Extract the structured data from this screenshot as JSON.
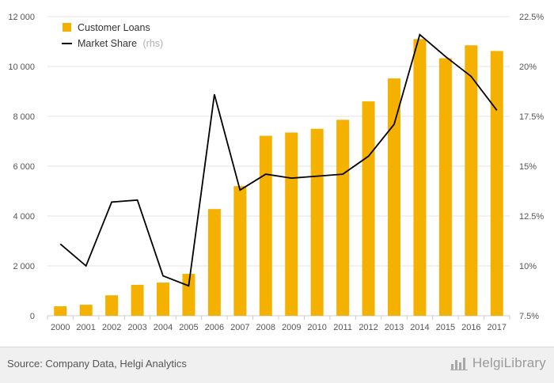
{
  "chart_data": {
    "type": "bar+line",
    "title": "",
    "x": [
      "2000",
      "2001",
      "2002",
      "2003",
      "2004",
      "2005",
      "2006",
      "2007",
      "2008",
      "2009",
      "2010",
      "2011",
      "2012",
      "2013",
      "2014",
      "2015",
      "2016",
      "2017"
    ],
    "series": [
      {
        "name": "Customer Loans",
        "type": "bar",
        "axis": "left",
        "color": "#f5b100",
        "values": [
          380,
          440,
          820,
          1240,
          1330,
          1680,
          4280,
          5200,
          7220,
          7350,
          7500,
          7860,
          8600,
          9520,
          11100,
          10330,
          10850,
          10620
        ]
      },
      {
        "name": "Market Share",
        "name_suffix": "(rhs)",
        "type": "line",
        "axis": "right",
        "color": "#000000",
        "values": [
          11.1,
          10.0,
          13.2,
          13.3,
          9.5,
          9.0,
          18.6,
          13.8,
          14.6,
          14.4,
          14.5,
          14.6,
          15.5,
          17.1,
          21.6,
          20.5,
          19.5,
          17.8
        ]
      }
    ],
    "y_left": {
      "min": 0,
      "max": 12000,
      "ticks": [
        0,
        2000,
        4000,
        6000,
        8000,
        10000,
        12000
      ],
      "tick_labels": [
        "0",
        "2 000",
        "4 000",
        "6 000",
        "8 000",
        "10 000",
        "12 000"
      ]
    },
    "y_right": {
      "min": 7.5,
      "max": 22.5,
      "ticks": [
        7.5,
        10,
        12.5,
        15,
        17.5,
        20,
        22.5
      ],
      "tick_labels": [
        "7.5%",
        "10%",
        "12.5%",
        "15%",
        "17.5%",
        "20%",
        "22.5%"
      ]
    },
    "grid": "horizontal",
    "legend_position": "top-left"
  },
  "footer": {
    "source": "Source: Company Data, Helgi Analytics",
    "brand": "HelgiLibrary"
  },
  "colors": {
    "accent": "#f5b100",
    "line": "#000000",
    "grid": "#e3e3e3",
    "footer_bg": "#f0f0f0"
  },
  "icons": {
    "brand_logo": "bar-chart-logo-icon"
  }
}
